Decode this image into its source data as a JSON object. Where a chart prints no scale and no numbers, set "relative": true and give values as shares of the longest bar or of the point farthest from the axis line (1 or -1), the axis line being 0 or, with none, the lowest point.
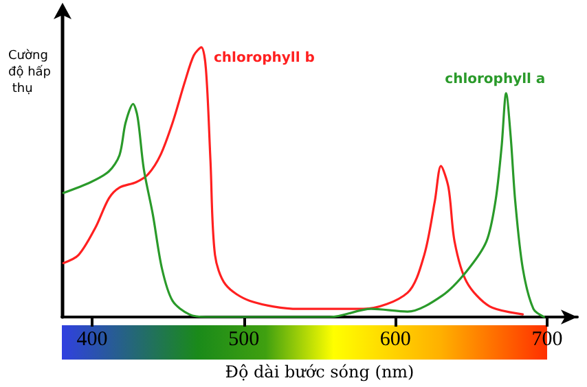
{
  "chart_data": {
    "type": "line",
    "relative": true,
    "xlabel": "Độ dài bước sóng (nm)",
    "ylabel": "Cường độ hấp thụ",
    "xlim": [
      380,
      720
    ],
    "xticks": [
      400,
      500,
      600,
      700
    ],
    "grid": false,
    "legend": false,
    "series": [
      {
        "name": "chlorophyll b",
        "color": "#ff2020",
        "x": [
          381,
          391,
          402,
          411,
          418,
          429,
          437,
          445,
          453,
          461,
          467,
          472,
          475,
          478,
          481,
          488,
          504,
          536,
          579,
          608,
          619,
          626,
          630,
          635,
          639,
          647,
          662,
          684
        ],
        "values": [
          0.2,
          0.23,
          0.33,
          0.44,
          0.48,
          0.5,
          0.53,
          0.6,
          0.72,
          0.87,
          0.97,
          1,
          0.92,
          0.58,
          0.23,
          0.12,
          0.06,
          0.03,
          0.03,
          0.09,
          0.23,
          0.43,
          0.56,
          0.48,
          0.28,
          0.13,
          0.04,
          0.01
        ]
      },
      {
        "name": "chlorophyll a",
        "color": "#2a9a2a",
        "x": [
          381,
          399,
          411,
          418,
          422,
          427,
          430,
          434,
          440,
          446,
          453,
          464,
          475,
          557,
          584,
          608,
          631,
          647,
          660,
          666,
          670,
          673,
          676,
          679,
          684,
          691,
          698
        ],
        "values": [
          0.46,
          0.5,
          0.54,
          0.6,
          0.72,
          0.79,
          0.74,
          0.55,
          0.38,
          0.18,
          0.06,
          0.01,
          0,
          0,
          0.03,
          0.02,
          0.08,
          0.17,
          0.28,
          0.43,
          0.63,
          0.83,
          0.67,
          0.43,
          0.18,
          0.03,
          0
        ]
      }
    ]
  }
}
